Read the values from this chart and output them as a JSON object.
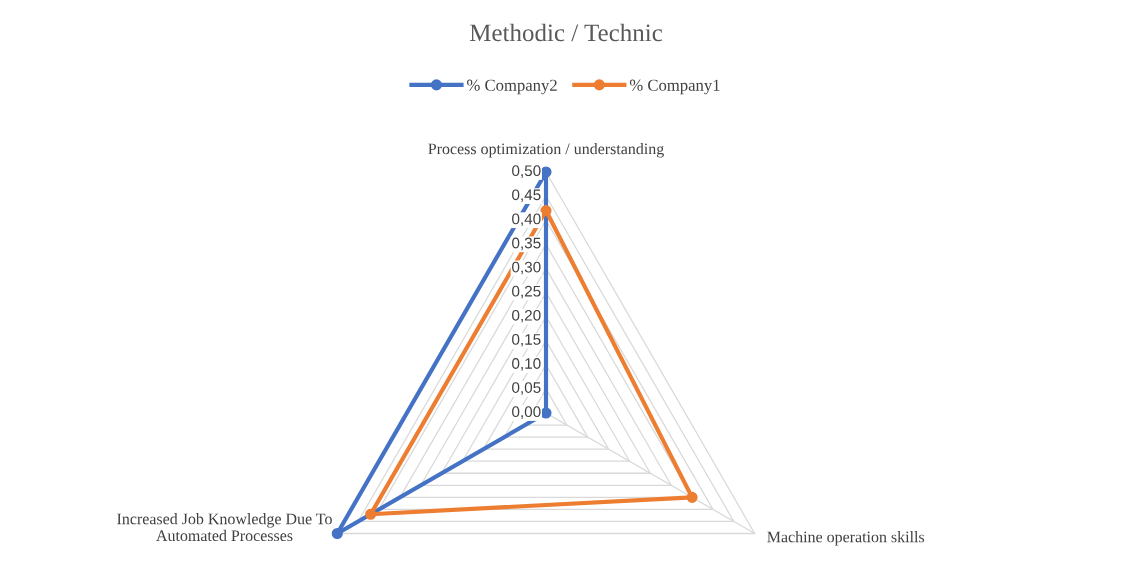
{
  "chart_data": {
    "type": "radar",
    "title": "Methodic / Technic",
    "categories": [
      "Process optimization / understanding",
      "Machine operation skills",
      "Increased Job Knowledge Due To\nAutomated Processes"
    ],
    "series": [
      {
        "name": "% Company2",
        "color": "#4472c4",
        "values": [
          0.5,
          0.0,
          0.5
        ]
      },
      {
        "name": "% Company1",
        "color": "#ed7d31",
        "values": [
          0.42,
          0.35,
          0.42
        ]
      }
    ],
    "ylim": [
      0,
      0.5
    ],
    "yticks": [
      {
        "value": 0,
        "label": "0,00"
      },
      {
        "value": 0.05,
        "label": "0,05"
      },
      {
        "value": 0.1,
        "label": "0,10"
      },
      {
        "value": 0.15,
        "label": "0,15"
      },
      {
        "value": 0.2,
        "label": "0,20"
      },
      {
        "value": 0.25,
        "label": "0,25"
      },
      {
        "value": 0.3,
        "label": "0,30"
      },
      {
        "value": 0.35,
        "label": "0,35"
      },
      {
        "value": 0.4,
        "label": "0,40"
      },
      {
        "value": 0.45,
        "label": "0,45"
      },
      {
        "value": 0.5,
        "label": "0,50"
      }
    ],
    "grid": true,
    "legend": "top",
    "marker": "circle",
    "line_style": "solid"
  }
}
